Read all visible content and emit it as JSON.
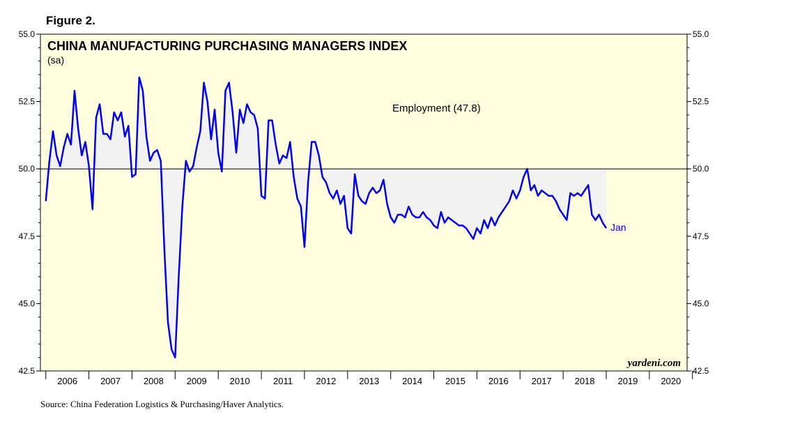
{
  "figure_label": "Figure 2.",
  "source": "Source: China Federation Logistics & Purchasing/Haver Analytics.",
  "brand": "yardeni.com",
  "chart_data": {
    "type": "line",
    "title": "CHINA MANUFACTURING PURCHASING MANAGERS INDEX",
    "subtitle": "(sa)",
    "annotation": "Employment (47.8)",
    "end_label": "Jan",
    "xlabel": "",
    "ylabel": "",
    "ylim": [
      42.5,
      55.0
    ],
    "reference_line": 50.0,
    "y_ticks": [
      "55.0",
      "52.5",
      "50.0",
      "47.5",
      "45.0",
      "42.5"
    ],
    "x_ticks": [
      "2006",
      "2007",
      "2008",
      "2009",
      "2010",
      "2011",
      "2012",
      "2013",
      "2014",
      "2015",
      "2016",
      "2017",
      "2018",
      "2019",
      "2020"
    ],
    "x_range": [
      "2005-12",
      "2020-12"
    ],
    "grid": false,
    "shaded_area_to_50": true,
    "colors": {
      "line": "#0000ee",
      "plot_bg": "#ffffe0",
      "shade": "#f2f2f2",
      "end_label": "#0000ee"
    },
    "series": [
      {
        "x_start": "2006-01",
        "values": [
          48.8,
          50.3,
          51.4,
          50.5,
          50.1,
          50.8,
          51.3,
          50.9,
          52.9,
          51.5,
          50.5,
          51.0,
          50.1,
          48.5,
          51.9,
          52.4,
          51.3,
          51.3,
          51.1,
          52.1,
          51.8,
          52.1,
          51.2,
          51.6,
          49.7,
          49.8,
          53.4,
          52.9,
          51.2,
          50.3,
          50.6,
          50.7,
          50.3,
          47.0,
          44.3,
          43.3,
          43.0,
          46.0,
          48.6,
          50.3,
          49.9,
          50.1,
          50.8,
          51.4,
          53.2,
          52.5,
          51.1,
          52.2,
          50.6,
          49.9,
          52.9,
          53.2,
          52.1,
          50.6,
          52.2,
          51.7,
          52.4,
          52.1,
          52.0,
          51.5,
          49.0,
          48.9,
          51.8,
          51.8,
          50.9,
          50.2,
          50.5,
          50.4,
          51.0,
          49.7,
          48.9,
          48.6,
          47.1,
          49.5,
          51.0,
          51.0,
          50.5,
          49.7,
          49.5,
          49.1,
          48.9,
          49.2,
          48.7,
          49.0,
          47.8,
          47.6,
          49.8,
          49.0,
          48.8,
          48.7,
          49.1,
          49.3,
          49.1,
          49.2,
          49.6,
          48.7,
          48.2,
          48.0,
          48.3,
          48.3,
          48.2,
          48.6,
          48.3,
          48.2,
          48.2,
          48.4,
          48.2,
          48.1,
          47.9,
          47.8,
          48.4,
          48.0,
          48.2,
          48.1,
          48.0,
          47.9,
          47.9,
          47.8,
          47.6,
          47.4,
          47.8,
          47.6,
          48.1,
          47.8,
          48.2,
          47.9,
          48.2,
          48.4,
          48.6,
          48.8,
          49.2,
          48.9,
          49.2,
          49.7,
          50.0,
          49.2,
          49.4,
          49.0,
          49.2,
          49.1,
          49.0,
          49.0,
          48.8,
          48.5,
          48.3,
          48.1,
          49.1,
          49.0,
          49.1,
          49.0,
          49.2,
          49.4,
          48.3,
          48.1,
          48.3,
          48.0,
          47.8
        ]
      }
    ]
  }
}
